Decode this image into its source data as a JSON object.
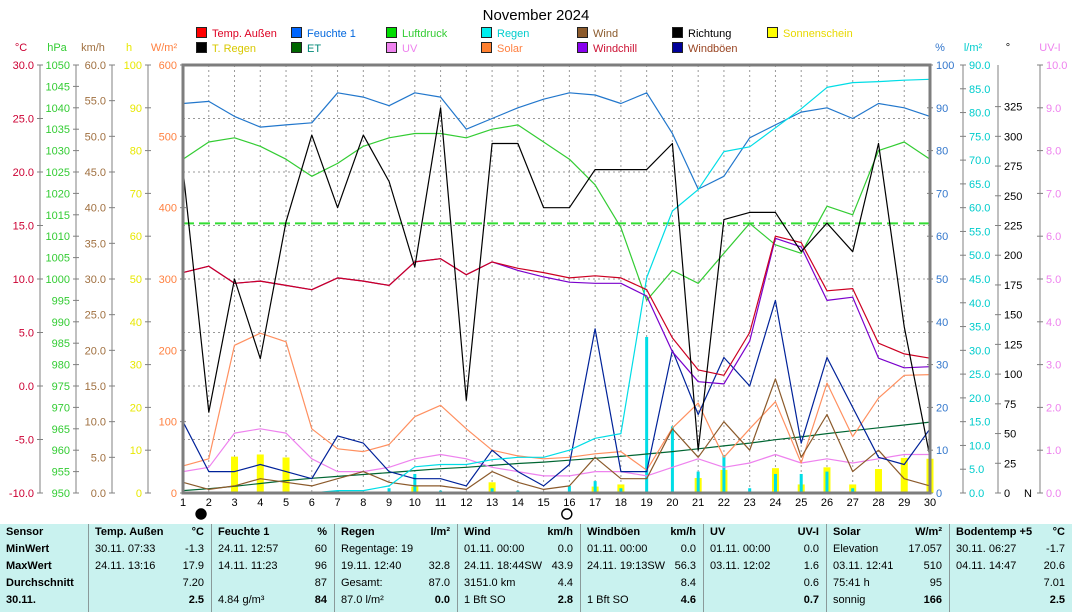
{
  "title": "November 2024",
  "legend": {
    "rows": [
      [
        {
          "label": "Temp. Außen",
          "box": "#ff0000",
          "text": "#dd0022"
        },
        {
          "label": "Feuchte 1",
          "box": "#0066ff",
          "text": "#0066dd"
        },
        {
          "label": "Luftdruck",
          "box": "#00dd00",
          "text": "#33cc33"
        },
        {
          "label": "Regen",
          "box": "#00eeee",
          "text": "#00cccc"
        },
        {
          "label": "Wind",
          "box": "#8b5a2b",
          "text": "#8b5a2b"
        },
        {
          "label": "Richtung",
          "box": "#000000",
          "text": "#000000"
        },
        {
          "label": "Sonnenschein",
          "box": "#ffff00",
          "text": "#e8d800"
        }
      ],
      [
        {
          "label": "T. Regen",
          "box": "#000000",
          "text": "#d8c800"
        },
        {
          "label": "ET",
          "box": "#006600",
          "text": "#008877"
        },
        {
          "label": "UV",
          "box": "#ee82ee",
          "text": "#ee82ee"
        },
        {
          "label": "Solar",
          "box": "#ff8030",
          "text": "#ff8040"
        },
        {
          "label": "Windchill",
          "box": "#8800ee",
          "text": "#cc1133"
        },
        {
          "label": "Windböen",
          "box": "#000099",
          "text": "#994422"
        }
      ]
    ]
  },
  "chart_data": {
    "type": "line",
    "title": "November 2024",
    "x_ticks": [
      1,
      2,
      3,
      4,
      5,
      6,
      7,
      8,
      9,
      10,
      11,
      12,
      13,
      14,
      15,
      16,
      17,
      18,
      19,
      20,
      21,
      22,
      23,
      24,
      25,
      26,
      27,
      28,
      29,
      30
    ],
    "axes": {
      "temp": {
        "min": -10,
        "max": 30
      },
      "hpa": {
        "min": 950,
        "max": 1050
      },
      "kmh": {
        "min": 0,
        "max": 60
      },
      "hours": {
        "min": 0,
        "max": 100
      },
      "wm2": {
        "min": 0,
        "max": 600
      },
      "percent": {
        "min": 0,
        "max": 100
      },
      "lm2": {
        "min": 0,
        "max": 90
      },
      "deg": {
        "min": 0,
        "max": 360
      },
      "uvi": {
        "min": 0,
        "max": 10
      }
    },
    "left_axes": [
      {
        "unit": "°C",
        "color": "#cc0033",
        "axis": "temp",
        "step": 5,
        "decimals": 1
      },
      {
        "unit": "hPa",
        "color": "#33cc33",
        "axis": "hpa",
        "step": 5,
        "decimals": 0
      },
      {
        "unit": "km/h",
        "color": "#a07040",
        "axis": "kmh",
        "step": 5,
        "decimals": 1
      },
      {
        "unit": "h",
        "color": "#e8e800",
        "axis": "hours",
        "step": 10,
        "decimals": 0
      },
      {
        "unit": "W/m²",
        "color": "#ff8040",
        "axis": "wm2",
        "step": 100,
        "decimals": 0
      }
    ],
    "right_axes": [
      {
        "unit": "%",
        "color": "#3377cc",
        "axis": "percent",
        "step": 10,
        "decimals": 0
      },
      {
        "unit": "l/m²",
        "color": "#00cccc",
        "axis": "lm2",
        "step": 5,
        "decimals": 1
      },
      {
        "unit": "°",
        "color": "#000000",
        "axis": "deg",
        "step": 25,
        "decimals": 0,
        "zero_label": "N"
      },
      {
        "unit": "UV-I",
        "color": "#ee82ee",
        "axis": "uvi",
        "step": 1,
        "decimals": 1
      }
    ],
    "reference_line": {
      "axis": "hpa",
      "value": 1013,
      "color": "#33dd33"
    },
    "moon_phases": [
      {
        "symbol": "new-moon",
        "glyph": "●",
        "day": 1.7
      },
      {
        "symbol": "full-moon",
        "glyph": "○",
        "day": 15.9
      }
    ],
    "series": [
      {
        "name": "Sonnenschein",
        "axis": "hours",
        "type": "bar",
        "color": "#ffff00",
        "barw": 7,
        "values": [
          0,
          0,
          8.5,
          9.0,
          8.3,
          0,
          0.3,
          0,
          0,
          1.5,
          0,
          0,
          2.5,
          0.3,
          0,
          0,
          1.5,
          2.0,
          0.3,
          0,
          3.5,
          5.4,
          0,
          5.8,
          2.0,
          6.0,
          2.0,
          5.6,
          8.2,
          8.0
        ]
      },
      {
        "name": "Regen Tag",
        "axis": "lm2",
        "type": "bar",
        "color": "#00dde6",
        "barw": 3,
        "values": [
          0,
          0,
          0,
          0,
          0,
          0,
          0.5,
          0,
          1.0,
          4.0,
          0.5,
          0,
          1.0,
          0.5,
          0,
          1.5,
          2.5,
          1.0,
          32.8,
          14.0,
          4.5,
          8.0,
          1.0,
          4.0,
          4.0,
          4.5,
          1.0,
          0.2,
          0.3,
          0.2
        ]
      },
      {
        "name": "ET",
        "axis": "lm2",
        "type": "line",
        "color": "#006633",
        "values": [
          0.5,
          0.9,
          1.4,
          2.0,
          2.6,
          3.1,
          3.5,
          3.9,
          4.3,
          4.7,
          5.1,
          5.4,
          5.8,
          6.2,
          6.5,
          6.9,
          7.3,
          7.7,
          8.2,
          8.7,
          9.3,
          9.9,
          10.5,
          11.2,
          11.8,
          12.5,
          13.1,
          13.7,
          14.3,
          14.9
        ]
      },
      {
        "name": "UV",
        "axis": "uvi",
        "type": "line",
        "color": "#ee82ee",
        "values": [
          0.5,
          0.6,
          1.4,
          1.5,
          1.4,
          0.8,
          0.5,
          0.5,
          0.6,
          0.8,
          0.9,
          0.8,
          0.6,
          0.5,
          0.4,
          0.4,
          0.5,
          0.5,
          0.4,
          0.6,
          0.8,
          0.6,
          0.7,
          0.9,
          0.7,
          0.8,
          0.7,
          0.8,
          0.9,
          0.9
        ]
      },
      {
        "name": "Solar",
        "axis": "wm2",
        "type": "line",
        "color": "#ff9060",
        "values": [
          38,
          48,
          207,
          224,
          212,
          90,
          62,
          58,
          68,
          107,
          123,
          90,
          60,
          52,
          48,
          50,
          55,
          58,
          32,
          91,
          126,
          50,
          90,
          128,
          42,
          154,
          79,
          133,
          165,
          166
        ]
      },
      {
        "name": "Wind",
        "axis": "kmh",
        "type": "line",
        "color": "#8b5a2b",
        "values": [
          1.5,
          0.5,
          1,
          2,
          1.5,
          1,
          2,
          3,
          1.5,
          1,
          1,
          0.5,
          3,
          1.5,
          0.5,
          1,
          5,
          2,
          2,
          9,
          5,
          10,
          6,
          16,
          5,
          11,
          3,
          6,
          2,
          1
        ]
      },
      {
        "name": "Windböen",
        "axis": "kmh",
        "type": "line",
        "color": "#002299",
        "values": [
          10,
          3,
          3,
          4,
          3,
          2,
          8,
          7,
          3,
          2,
          2,
          1,
          6,
          3,
          1,
          4,
          23,
          3,
          3,
          20,
          11,
          19,
          15,
          27,
          7,
          19,
          12,
          5,
          4,
          9
        ]
      },
      {
        "name": "Feuchte 1",
        "axis": "percent",
        "type": "line",
        "color": "#2277cc",
        "values": [
          91,
          91.5,
          88,
          85.5,
          86,
          86.5,
          93.5,
          92.5,
          90.5,
          93.5,
          92.5,
          85,
          87.5,
          90,
          92,
          93.5,
          93,
          91,
          93.5,
          84,
          71,
          74,
          83,
          86,
          89,
          90,
          87.5,
          91,
          90,
          88
        ]
      },
      {
        "name": "Luftdruck",
        "axis": "hpa",
        "type": "line",
        "color": "#33cc33",
        "values": [
          1028,
          1032,
          1033,
          1031,
          1028,
          1024,
          1027,
          1031,
          1033,
          1034,
          1034,
          1033,
          1035,
          1036,
          1032,
          1028,
          1022,
          1012,
          995,
          1002,
          999,
          1006,
          1013,
          1008,
          1006,
          1017,
          1015,
          1030,
          1032,
          1028
        ]
      },
      {
        "name": "Regen Summe",
        "axis": "lm2",
        "type": "line",
        "color": "#00dde6",
        "values": [
          0,
          0,
          0,
          0,
          0,
          0,
          0.5,
          0.5,
          1.5,
          5.5,
          6.0,
          6.0,
          7.0,
          7.5,
          7.5,
          9.0,
          11.5,
          12.5,
          45.3,
          59.3,
          63.8,
          71.8,
          72.8,
          76.8,
          80.8,
          85.3,
          86.3,
          86.5,
          86.8,
          87.0
        ]
      },
      {
        "name": "Windchill",
        "axis": "temp",
        "type": "line",
        "color": "#7a00cc",
        "values": [
          10.6,
          11.2,
          9.6,
          9.8,
          9.4,
          9.0,
          10.1,
          9.8,
          9.4,
          11.6,
          11.9,
          10.4,
          11.6,
          10.8,
          10.2,
          9.7,
          9.6,
          9.6,
          8.4,
          3.2,
          0.4,
          0.2,
          4.2,
          13.8,
          13.0,
          8.0,
          8.3,
          2.6,
          1.7,
          1.8
        ]
      },
      {
        "name": "Temp. Außen",
        "axis": "temp",
        "type": "line",
        "color": "#cc0022",
        "values": [
          10.6,
          11.2,
          9.6,
          9.8,
          9.4,
          9.0,
          10.1,
          9.8,
          9.4,
          11.6,
          11.9,
          10.4,
          11.6,
          11.0,
          10.6,
          10.1,
          10.3,
          10.1,
          9.0,
          4.5,
          1.5,
          1.0,
          5.0,
          14.0,
          13.4,
          8.9,
          9.1,
          4.0,
          3.0,
          2.6
        ]
      },
      {
        "name": "Richtung",
        "axis": "deg",
        "type": "line",
        "color": "#000000",
        "values": [
          272,
          68,
          180,
          113,
          228,
          301,
          240,
          301,
          262,
          190,
          324,
          78,
          294,
          294,
          240,
          240,
          272,
          272,
          272,
          294,
          36,
          230,
          236,
          236,
          203,
          227,
          203,
          294,
          140,
          30
        ]
      }
    ]
  },
  "table": {
    "row_labels": [
      "Sensor",
      "MinWert",
      "MaxWert",
      "Durchschnitt",
      "30.11."
    ],
    "columns": [
      {
        "name": "Temp. Außen",
        "unit": "°C",
        "rows": [
          [
            "30.11.  07:33",
            "-1.3"
          ],
          [
            "24.11.  13:16",
            "17.9"
          ],
          [
            "",
            "7.20"
          ],
          [
            "",
            "2.5"
          ]
        ]
      },
      {
        "name": "Feuchte 1",
        "unit": "%",
        "rows": [
          [
            "24.11.  12:57",
            "60"
          ],
          [
            "14.11.  11:23",
            "96"
          ],
          [
            "",
            "87"
          ],
          [
            "4.84 g/m³",
            "84"
          ]
        ]
      },
      {
        "name": "Regen",
        "unit": "l/m²",
        "rows": [
          [
            "Regentage: 19",
            ""
          ],
          [
            "19.11.  12:40",
            "32.8"
          ],
          [
            "Gesamt:",
            "87.0"
          ],
          [
            "87.0 l/m²",
            "0.0"
          ]
        ]
      },
      {
        "name": "Wind",
        "unit": "km/h",
        "rows": [
          [
            "01.11.  00:00",
            "0.0"
          ],
          [
            "24.11.  18:44SW",
            "43.9"
          ],
          [
            "3151.0 km",
            "4.4"
          ],
          [
            "1 Bft SO",
            "2.8"
          ]
        ]
      },
      {
        "name": "Windböen",
        "unit": "km/h",
        "rows": [
          [
            "01.11.  00:00",
            "0.0"
          ],
          [
            "24.11.  19:13SW",
            "56.3"
          ],
          [
            "",
            "8.4"
          ],
          [
            "1 Bft SO",
            "4.6"
          ]
        ]
      },
      {
        "name": "UV",
        "unit": "UV-I",
        "rows": [
          [
            "01.11.  00:00",
            "0.0"
          ],
          [
            "03.11.  12:02",
            "1.6"
          ],
          [
            "",
            "0.6"
          ],
          [
            "",
            "0.7"
          ]
        ]
      },
      {
        "name": "Solar",
        "unit": "W/m²",
        "rows": [
          [
            "Elevation",
            "17.057"
          ],
          [
            "03.11.  12:41",
            "510"
          ],
          [
            "75:41 h",
            "95"
          ],
          [
            "sonnig",
            "166"
          ]
        ]
      },
      {
        "name": "Bodentemp +5",
        "unit": "°C",
        "rows": [
          [
            "30.11.  06:27",
            "-1.7"
          ],
          [
            "04.11.  14:47",
            "20.6"
          ],
          [
            "",
            "7.01"
          ],
          [
            "",
            "2.5"
          ]
        ]
      }
    ]
  }
}
